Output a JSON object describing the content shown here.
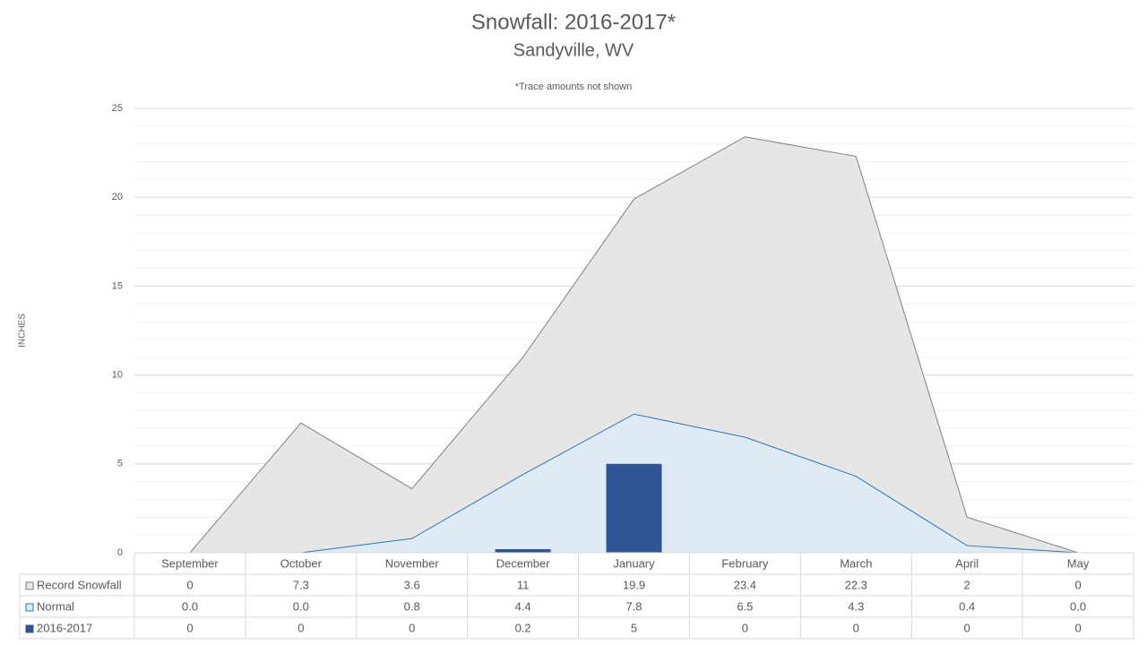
{
  "chart_data": {
    "type": "area_bar_table",
    "title": "Snowfall: 2016-2017*",
    "subtitle": "Sandyville, WV",
    "annotation": "*Trace amounts not shown",
    "y_label": "INCHES",
    "categories": [
      "September",
      "October",
      "November",
      "December",
      "January",
      "February",
      "March",
      "April",
      "May"
    ],
    "series": [
      {
        "name": "Record Snowfall",
        "type": "area",
        "color": "#e6e6e6",
        "line_color": "#808080",
        "values": [
          0,
          7.3,
          3.6,
          11,
          19.9,
          23.4,
          22.3,
          2,
          0
        ]
      },
      {
        "name": "Normal",
        "type": "area",
        "color": "#deeaf6",
        "line_color": "#2e75b6",
        "values": [
          0,
          0,
          0.8,
          4.4,
          7.8,
          6.5,
          4.3,
          0.4,
          0
        ],
        "value_labels": [
          "0.0",
          "0.0",
          "0.8",
          "4.4",
          "7.8",
          "6.5",
          "4.3",
          "0.4",
          "0.0"
        ]
      },
      {
        "name": "2016-2017",
        "type": "bar",
        "color": "#2f5597",
        "values": [
          0,
          0,
          0,
          0.2,
          5,
          0,
          0,
          0,
          0
        ]
      }
    ],
    "ylim": [
      0,
      25
    ],
    "yticks": [
      0,
      5,
      10,
      15,
      20,
      25
    ],
    "grid": true
  }
}
